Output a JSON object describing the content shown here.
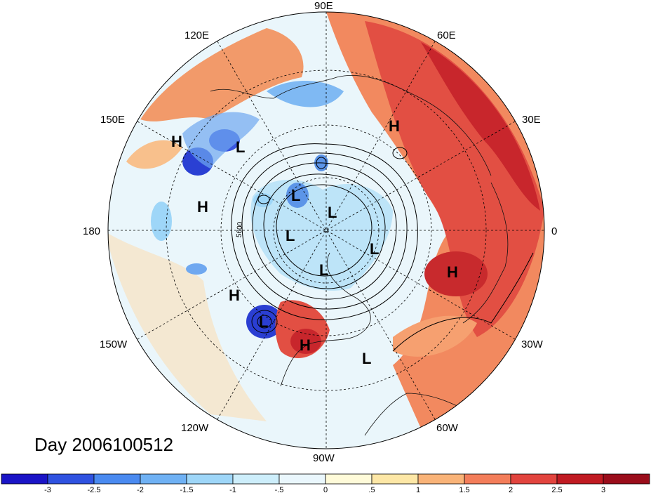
{
  "title": "Day 2006100512",
  "map": {
    "projection": "polar-stereographic-north",
    "longitude_labels": [
      {
        "text": "90E",
        "lon": 90
      },
      {
        "text": "60E",
        "lon": 60
      },
      {
        "text": "30E",
        "lon": 30
      },
      {
        "text": "0",
        "lon": 0
      },
      {
        "text": "30W",
        "lon": -30
      },
      {
        "text": "60W",
        "lon": -60
      },
      {
        "text": "90W",
        "lon": -90
      },
      {
        "text": "120W",
        "lon": -120
      },
      {
        "text": "150W",
        "lon": -150
      },
      {
        "text": "180",
        "lon": 180
      },
      {
        "text": "150E",
        "lon": 150
      },
      {
        "text": "120E",
        "lon": 120
      }
    ],
    "contour_label": "5600",
    "pressure_centers": [
      {
        "type": "H",
        "lon": 145,
        "lat": 38
      },
      {
        "type": "L",
        "lon": 128,
        "lat": 48
      },
      {
        "type": "H",
        "lon": 57,
        "lat": 48
      },
      {
        "type": "H",
        "lon": 170,
        "lat": 42
      },
      {
        "type": "L",
        "lon": 135,
        "lat": 75
      },
      {
        "type": "L",
        "lon": 90,
        "lat": 84
      },
      {
        "type": "L",
        "lon": 190,
        "lat": 78
      },
      {
        "type": "L",
        "lon": -35,
        "lat": 80
      },
      {
        "type": "L",
        "lon": -95,
        "lat": 81
      },
      {
        "type": "H",
        "lon": -10,
        "lat": 45
      },
      {
        "type": "H",
        "lon": -140,
        "lat": 42
      },
      {
        "type": "L",
        "lon": -132,
        "lat": 50
      },
      {
        "type": "H",
        "lon": -97,
        "lat": 41
      },
      {
        "type": "L",
        "lon": -70,
        "lat": 38
      }
    ]
  },
  "colorbar": {
    "ticks": [
      "-3",
      "-2.5",
      "-2",
      "-1.5",
      "-1",
      "-.5",
      "0",
      ".5",
      "1",
      "1.5",
      "2",
      "2.5",
      "3"
    ],
    "colors": [
      "#1a14c6",
      "#2f52e0",
      "#4a8af0",
      "#6fb1f4",
      "#9ed6f8",
      "#cdeefb",
      "#eaf7fd",
      "#fffbd9",
      "#fde7a6",
      "#f9b378",
      "#f37d5a",
      "#e2443e",
      "#c01a22",
      "#9a0d1b"
    ]
  },
  "anomaly_colors": {
    "strong_negative": "#2a43d8",
    "moderate_negative": "#9ed6f8",
    "weak_negative": "#d9f1fb",
    "weak_positive": "#fff5cc",
    "moderate_positive": "#f8a46b",
    "strong_positive": "#d93333"
  }
}
